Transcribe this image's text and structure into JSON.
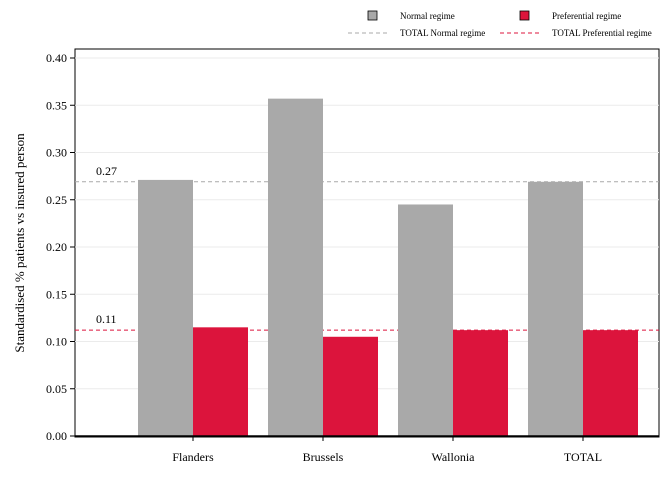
{
  "chart_data": {
    "type": "bar",
    "categories": [
      "Flanders",
      "Brussels",
      "Wallonia",
      "TOTAL"
    ],
    "series": [
      {
        "name": "Normal regime",
        "values": [
          0.271,
          0.357,
          0.245,
          0.269
        ],
        "color": "#a9a9a9"
      },
      {
        "name": "Preferential regime",
        "values": [
          0.115,
          0.105,
          0.112,
          0.112
        ],
        "color": "#dc143c"
      }
    ],
    "reference_lines": [
      {
        "name": "TOTAL Normal regime",
        "value": 0.269,
        "label": "0.27",
        "color": "#a9a9a9",
        "style": "dashed"
      },
      {
        "name": "TOTAL Preferential regime",
        "value": 0.112,
        "label": "0.11",
        "color": "#dc143c",
        "style": "dashed"
      }
    ],
    "ylabel": "Standardised % patients vs insured person",
    "xlabel": "",
    "ylim": [
      0,
      0.4
    ],
    "yticks": [
      "0.00",
      "0.05",
      "0.10",
      "0.15",
      "0.20",
      "0.25",
      "0.30",
      "0.35",
      "0.40"
    ],
    "grid": true,
    "legend_position": "top-right"
  }
}
